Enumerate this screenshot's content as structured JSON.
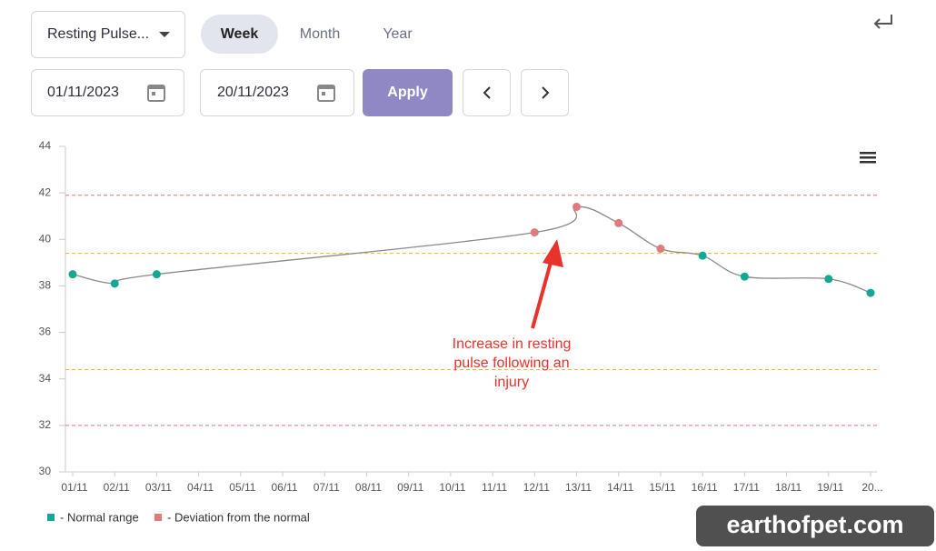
{
  "controls": {
    "metric": "Resting Pulse...",
    "tabs": [
      "Week",
      "Month",
      "Year"
    ],
    "start_date": "01/11/2023",
    "end_date": "20/11/2023",
    "apply": "Apply"
  },
  "chart_data": {
    "type": "line",
    "x": [
      1,
      2,
      3,
      12,
      13,
      14,
      15,
      16,
      17,
      19,
      20
    ],
    "series": [
      {
        "name": "Resting pulse",
        "color": "#8a8a8a",
        "values": [
          38.5,
          38.1,
          38.5,
          40.3,
          41.4,
          40.7,
          39.6,
          39.3,
          38.4,
          38.3,
          37.7
        ],
        "point_class": [
          0,
          0,
          0,
          1,
          1,
          1,
          1,
          0,
          0,
          0,
          0
        ]
      }
    ],
    "legend": [
      {
        "name": "- Normal range",
        "color": "#13a894"
      },
      {
        "name": "- Deviation from the normal",
        "color": "#df7b7b"
      }
    ],
    "xlim": [
      1,
      20
    ],
    "xticks": [
      {
        "value": 1,
        "label": "01/11"
      },
      {
        "value": 2,
        "label": "02/11"
      },
      {
        "value": 3,
        "label": "03/11"
      },
      {
        "value": 4,
        "label": "04/11"
      },
      {
        "value": 5,
        "label": "05/11"
      },
      {
        "value": 6,
        "label": "06/11"
      },
      {
        "value": 7,
        "label": "07/11"
      },
      {
        "value": 8,
        "label": "08/11"
      },
      {
        "value": 9,
        "label": "09/11"
      },
      {
        "value": 10,
        "label": "10/11"
      },
      {
        "value": 11,
        "label": "11/11"
      },
      {
        "value": 12,
        "label": "12/11"
      },
      {
        "value": 13,
        "label": "13/11"
      },
      {
        "value": 14,
        "label": "14/11"
      },
      {
        "value": 15,
        "label": "15/11"
      },
      {
        "value": 16,
        "label": "16/11"
      },
      {
        "value": 17,
        "label": "17/11"
      },
      {
        "value": 18,
        "label": "18/11"
      },
      {
        "value": 19,
        "label": "19/11"
      },
      {
        "value": 20,
        "label": "20..."
      }
    ],
    "ylim": [
      30,
      44
    ],
    "yticks": [
      30,
      32,
      34,
      36,
      38,
      40,
      42,
      44
    ],
    "reference_lines": [
      {
        "value": 41.9,
        "color": "#e57373"
      },
      {
        "value": 39.4,
        "color": "#f0b429"
      },
      {
        "value": 34.4,
        "color": "#f0b429"
      },
      {
        "value": 32,
        "color": "#e57373"
      }
    ],
    "annotation": [
      "Increase in resting",
      "pulse following an",
      "injury"
    ]
  },
  "watermark": "earthofpet.com"
}
